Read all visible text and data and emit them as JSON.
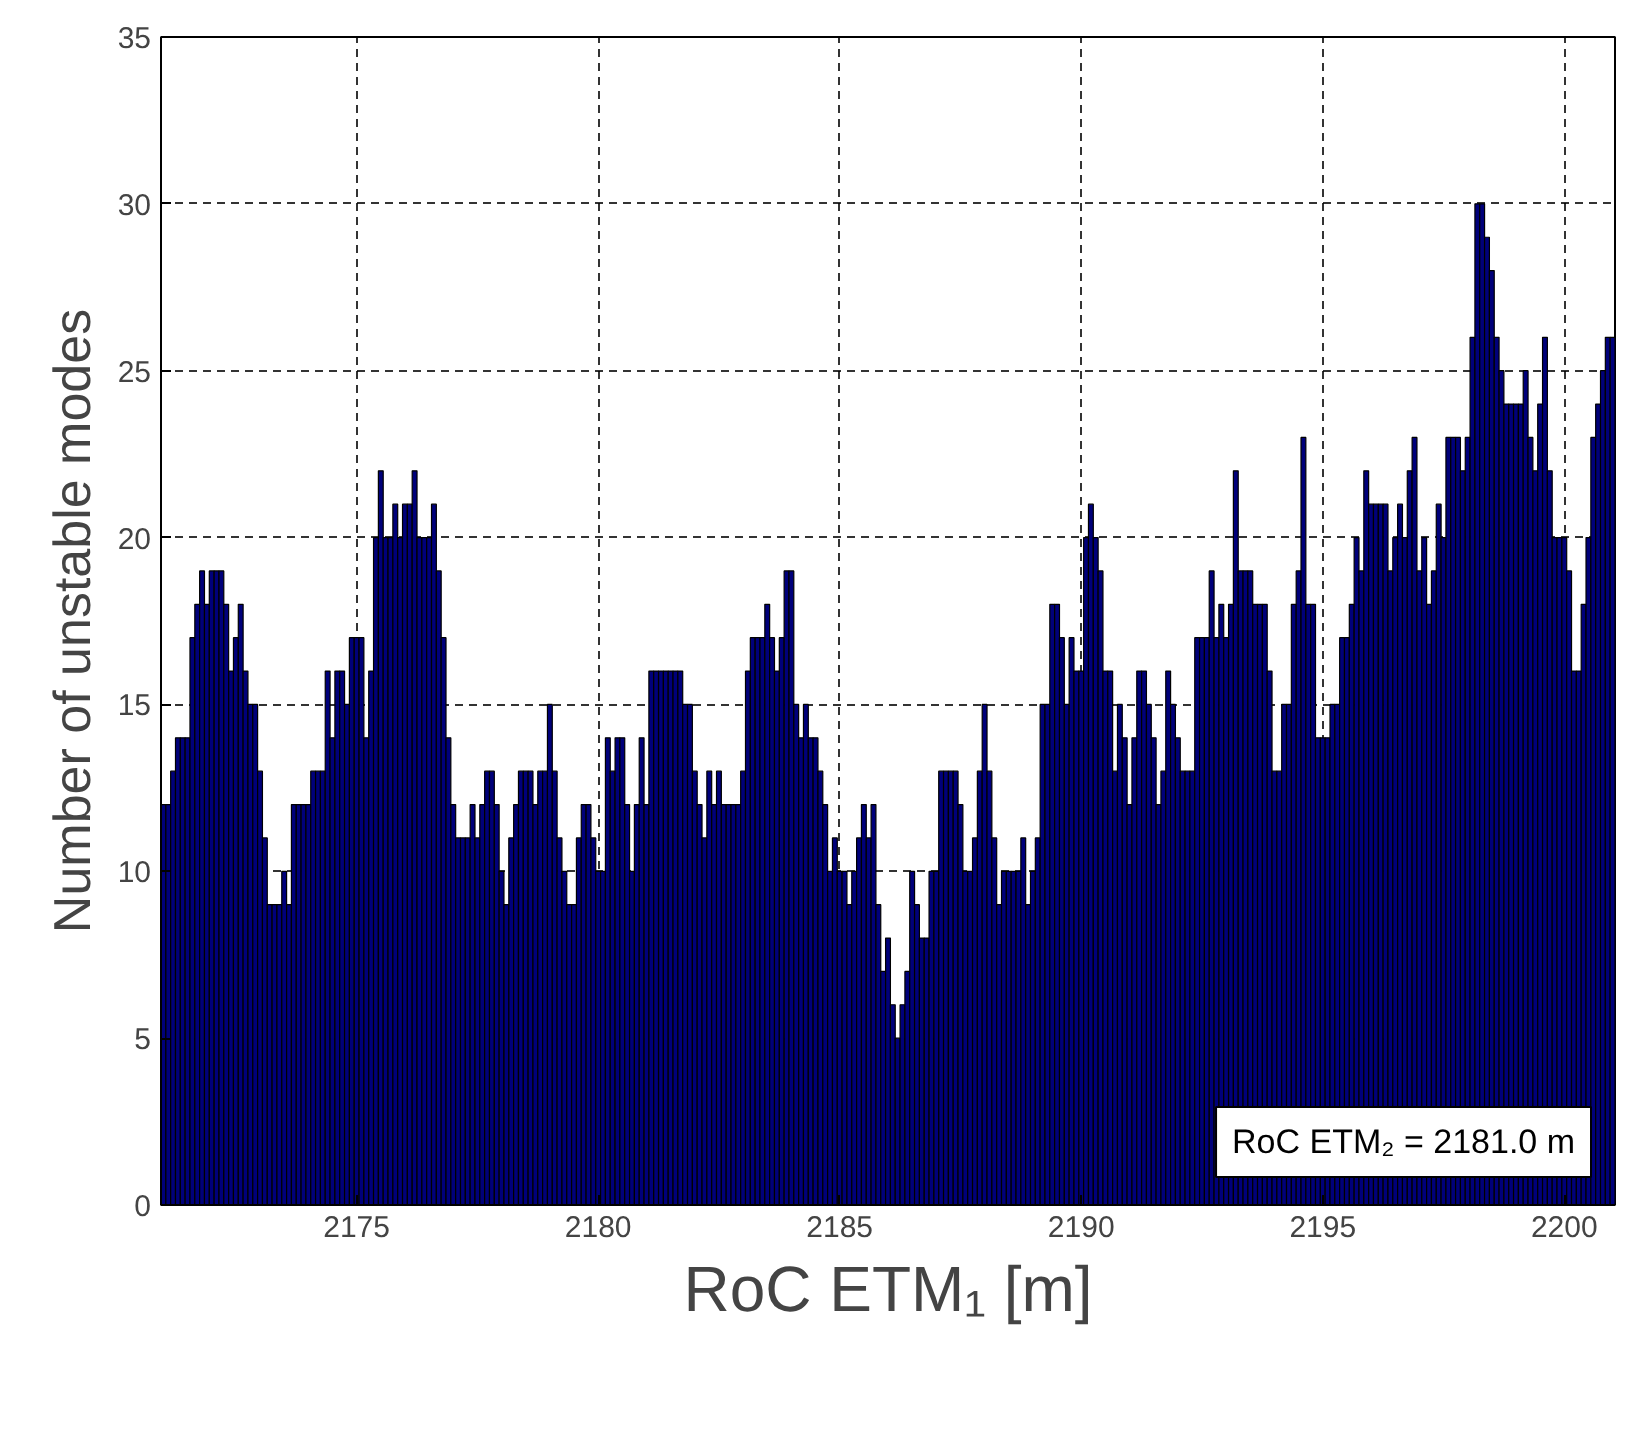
{
  "chart_data": {
    "type": "bar",
    "xlabel": "RoC ETM₁ [m]",
    "ylabel": "Number of unstable modes",
    "annotations": [
      "RoC ETM₂ = 2181.0 m"
    ],
    "x": [
      2171.0,
      2171.1,
      2171.2,
      2171.3,
      2171.4,
      2171.5,
      2171.6,
      2171.7,
      2171.8,
      2171.9,
      2172.0,
      2172.1,
      2172.2,
      2172.3,
      2172.4,
      2172.5,
      2172.6,
      2172.7,
      2172.8,
      2172.9,
      2173.0,
      2173.1,
      2173.2,
      2173.3,
      2173.4,
      2173.5,
      2173.6,
      2173.7,
      2173.8,
      2173.9,
      2174.0,
      2174.1,
      2174.2,
      2174.3,
      2174.4,
      2174.5,
      2174.6,
      2174.7,
      2174.8,
      2174.9,
      2175.0,
      2175.1,
      2175.2,
      2175.3,
      2175.4,
      2175.5,
      2175.6,
      2175.7,
      2175.8,
      2175.9,
      2176.0,
      2176.1,
      2176.2,
      2176.3,
      2176.4,
      2176.5,
      2176.6,
      2176.7,
      2176.8,
      2176.9,
      2177.0,
      2177.1,
      2177.2,
      2177.3,
      2177.4,
      2177.5,
      2177.6,
      2177.7,
      2177.8,
      2177.9,
      2178.0,
      2178.1,
      2178.2,
      2178.3,
      2178.4,
      2178.5,
      2178.6,
      2178.7,
      2178.8,
      2178.9,
      2179.0,
      2179.1,
      2179.2,
      2179.3,
      2179.4,
      2179.5,
      2179.6,
      2179.7,
      2179.8,
      2179.9,
      2180.0,
      2180.1,
      2180.2,
      2180.3,
      2180.4,
      2180.5,
      2180.6,
      2180.7,
      2180.8,
      2180.9,
      2181.0,
      2181.1,
      2181.2,
      2181.3,
      2181.4,
      2181.5,
      2181.6,
      2181.7,
      2181.8,
      2181.9,
      2182.0,
      2182.1,
      2182.2,
      2182.3,
      2182.4,
      2182.5,
      2182.6,
      2182.7,
      2182.8,
      2182.9,
      2183.0,
      2183.1,
      2183.2,
      2183.3,
      2183.4,
      2183.5,
      2183.6,
      2183.7,
      2183.8,
      2183.9,
      2184.0,
      2184.1,
      2184.2,
      2184.3,
      2184.4,
      2184.5,
      2184.6,
      2184.7,
      2184.8,
      2184.9,
      2185.0,
      2185.1,
      2185.2,
      2185.3,
      2185.4,
      2185.5,
      2185.6,
      2185.7,
      2185.8,
      2185.9,
      2186.0,
      2186.1,
      2186.2,
      2186.3,
      2186.4,
      2186.5,
      2186.6,
      2186.7,
      2186.8,
      2186.9,
      2187.0,
      2187.1,
      2187.2,
      2187.3,
      2187.4,
      2187.5,
      2187.6,
      2187.7,
      2187.8,
      2187.9,
      2188.0,
      2188.1,
      2188.2,
      2188.3,
      2188.4,
      2188.5,
      2188.6,
      2188.7,
      2188.8,
      2188.9,
      2189.0,
      2189.1,
      2189.2,
      2189.3,
      2189.4,
      2189.5,
      2189.6,
      2189.7,
      2189.8,
      2189.9,
      2190.0,
      2190.1,
      2190.2,
      2190.3,
      2190.4,
      2190.5,
      2190.6,
      2190.7,
      2190.8,
      2190.9,
      2191.0,
      2191.1,
      2191.2,
      2191.3,
      2191.4,
      2191.5,
      2191.6,
      2191.7,
      2191.8,
      2191.9,
      2192.0,
      2192.1,
      2192.2,
      2192.3,
      2192.4,
      2192.5,
      2192.6,
      2192.7,
      2192.8,
      2192.9,
      2193.0,
      2193.1,
      2193.2,
      2193.3,
      2193.4,
      2193.5,
      2193.6,
      2193.7,
      2193.8,
      2193.9,
      2194.0,
      2194.1,
      2194.2,
      2194.3,
      2194.4,
      2194.5,
      2194.6,
      2194.7,
      2194.8,
      2194.9,
      2195.0,
      2195.1,
      2195.2,
      2195.3,
      2195.4,
      2195.5,
      2195.6,
      2195.7,
      2195.8,
      2195.9,
      2196.0,
      2196.1,
      2196.2,
      2196.3,
      2196.4,
      2196.5,
      2196.6,
      2196.7,
      2196.8,
      2196.9,
      2197.0,
      2197.1,
      2197.2,
      2197.3,
      2197.4,
      2197.5,
      2197.6,
      2197.7,
      2197.8,
      2197.9,
      2198.0,
      2198.1,
      2198.2,
      2198.3,
      2198.4,
      2198.5,
      2198.6,
      2198.7,
      2198.8,
      2198.9,
      2199.0,
      2199.1,
      2199.2,
      2199.3,
      2199.4,
      2199.5,
      2199.6,
      2199.7,
      2199.8,
      2199.9,
      2200.0,
      2200.1,
      2200.2,
      2200.3,
      2200.4,
      2200.5,
      2200.6,
      2200.7,
      2200.8,
      2200.9,
      2201.0
    ],
    "values": [
      12,
      12,
      13,
      14,
      14,
      14,
      17,
      18,
      19,
      18,
      19,
      19,
      19,
      18,
      16,
      17,
      18,
      16,
      15,
      15,
      13,
      11,
      9,
      9,
      9,
      10,
      9,
      12,
      12,
      12,
      12,
      13,
      13,
      13,
      16,
      14,
      16,
      16,
      15,
      17,
      17,
      17,
      14,
      16,
      20,
      22,
      20,
      20,
      21,
      20,
      21,
      21,
      22,
      20,
      20,
      20,
      21,
      19,
      17,
      14,
      12,
      11,
      11,
      11,
      12,
      11,
      12,
      13,
      13,
      12,
      10,
      9,
      11,
      12,
      13,
      13,
      13,
      12,
      13,
      13,
      15,
      13,
      11,
      10,
      9,
      9,
      11,
      12,
      12,
      11,
      10,
      10,
      14,
      13,
      14,
      14,
      12,
      10,
      12,
      14,
      12,
      16,
      16,
      16,
      16,
      16,
      16,
      16,
      15,
      15,
      13,
      12,
      11,
      13,
      12,
      13,
      12,
      12,
      12,
      12,
      13,
      16,
      17,
      17,
      17,
      18,
      17,
      16,
      17,
      19,
      19,
      15,
      14,
      15,
      14,
      14,
      13,
      12,
      10,
      11,
      10,
      10,
      9,
      10,
      11,
      12,
      11,
      12,
      9,
      7,
      8,
      6,
      5,
      6,
      7,
      10,
      9,
      8,
      8,
      10,
      10,
      13,
      13,
      13,
      13,
      12,
      10,
      10,
      11,
      13,
      15,
      13,
      11,
      9,
      10,
      10,
      10,
      10,
      11,
      9,
      10,
      11,
      15,
      15,
      18,
      18,
      17,
      15,
      17,
      16,
      16,
      20,
      21,
      20,
      19,
      16,
      16,
      13,
      15,
      14,
      12,
      14,
      16,
      16,
      15,
      14,
      12,
      13,
      16,
      15,
      14,
      13,
      13,
      13,
      17,
      17,
      17,
      19,
      17,
      18,
      17,
      18,
      22,
      19,
      19,
      19,
      18,
      18,
      18,
      16,
      13,
      13,
      15,
      15,
      18,
      19,
      23,
      18,
      18,
      14,
      14,
      14,
      15,
      15,
      17,
      17,
      18,
      20,
      19,
      22,
      21,
      21,
      21,
      21,
      19,
      20,
      21,
      20,
      22,
      23,
      19,
      20,
      18,
      19,
      21,
      20,
      23,
      23,
      23,
      22,
      23,
      26,
      30,
      30,
      29,
      28,
      26,
      25,
      24,
      24,
      24,
      24,
      25,
      23,
      22,
      24,
      26,
      22,
      20,
      20,
      20,
      19,
      16,
      16,
      18,
      20,
      23,
      24,
      25,
      26,
      26
    ],
    "color": "#00007a",
    "xlim": [
      2170.95,
      2201.05
    ],
    "ylim": [
      0,
      35
    ],
    "xticks": [
      2175,
      2180,
      2185,
      2190,
      2195,
      2200
    ],
    "yticks": [
      0,
      5,
      10,
      15,
      20,
      25,
      30,
      35
    ],
    "grid": true,
    "line_style": "dashed"
  }
}
